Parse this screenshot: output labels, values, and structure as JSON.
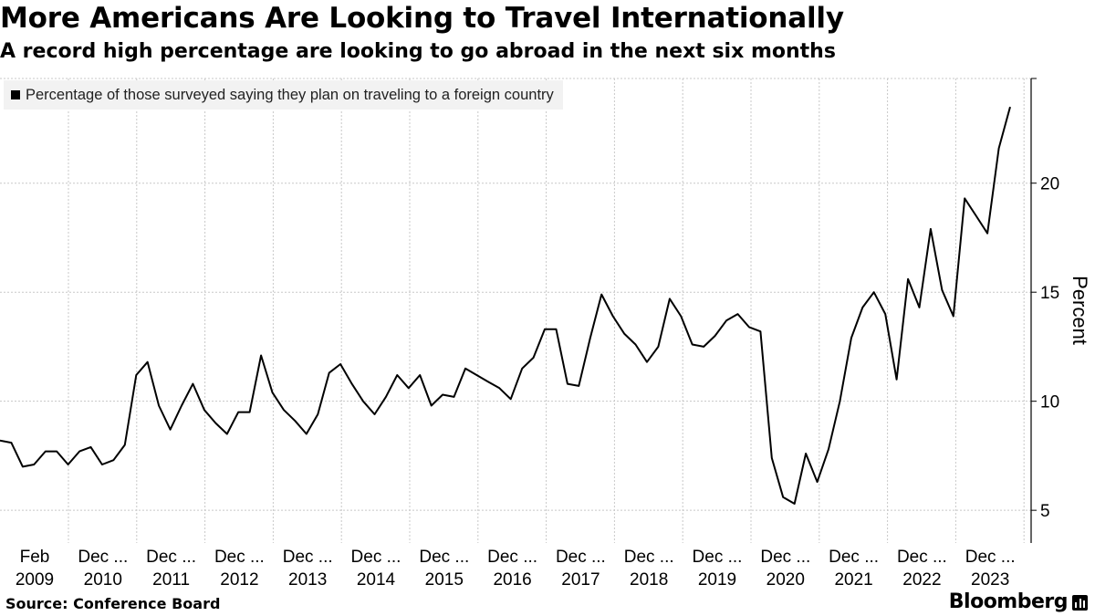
{
  "header": {
    "title": "More Americans Are Looking to Travel Internationally",
    "subtitle": "A record high percentage are looking to go abroad in the next six months"
  },
  "footer": {
    "source": "Source: Conference Board",
    "brand": "Bloomberg"
  },
  "chart_data": {
    "type": "line",
    "ylabel": "Percent",
    "ylim": [
      3.5,
      24.8
    ],
    "yticks": [
      5,
      10,
      15,
      20
    ],
    "grid": true,
    "line_color": "#000000",
    "series": [
      {
        "name": "Percentage of those surveyed saying they plan on traveling to a foreign country",
        "values": [
          8.2,
          8.1,
          7.0,
          7.1,
          7.7,
          7.7,
          7.1,
          7.7,
          7.9,
          7.1,
          7.3,
          8.0,
          11.2,
          11.8,
          9.8,
          8.7,
          9.8,
          10.8,
          9.6,
          9.0,
          8.5,
          9.5,
          9.5,
          12.1,
          10.4,
          9.6,
          9.1,
          8.5,
          9.4,
          11.3,
          11.7,
          10.8,
          10.0,
          9.4,
          10.2,
          11.2,
          10.6,
          11.2,
          9.8,
          10.3,
          10.2,
          11.5,
          11.2,
          10.9,
          10.6,
          10.1,
          11.5,
          12.0,
          13.3,
          13.3,
          10.8,
          10.7,
          12.9,
          14.9,
          13.9,
          13.1,
          12.6,
          11.8,
          12.5,
          14.7,
          13.9,
          12.6,
          12.5,
          13.0,
          13.7,
          14.0,
          13.4,
          13.2,
          7.4,
          5.6,
          5.3,
          7.6,
          6.3,
          7.8,
          10.0,
          12.9,
          14.3,
          15.0,
          14.0,
          11.0,
          15.6,
          14.3,
          17.9,
          15.1,
          13.9,
          19.3,
          18.5,
          17.7,
          21.6,
          23.5
        ]
      }
    ],
    "x_tick_labels": [
      {
        "top": "Feb",
        "bottom": "2009"
      },
      {
        "top": "Dec ...",
        "bottom": "2010"
      },
      {
        "top": "Dec ...",
        "bottom": "2011"
      },
      {
        "top": "Dec ...",
        "bottom": "2012"
      },
      {
        "top": "Dec ...",
        "bottom": "2013"
      },
      {
        "top": "Dec ...",
        "bottom": "2014"
      },
      {
        "top": "Dec ...",
        "bottom": "2015"
      },
      {
        "top": "Dec ...",
        "bottom": "2016"
      },
      {
        "top": "Dec ...",
        "bottom": "2017"
      },
      {
        "top": "Dec ...",
        "bottom": "2018"
      },
      {
        "top": "Dec ...",
        "bottom": "2019"
      },
      {
        "top": "Dec ...",
        "bottom": "2020"
      },
      {
        "top": "Dec ...",
        "bottom": "2021"
      },
      {
        "top": "Dec ...",
        "bottom": "2022"
      },
      {
        "top": "Dec ...",
        "bottom": "2023"
      }
    ]
  }
}
